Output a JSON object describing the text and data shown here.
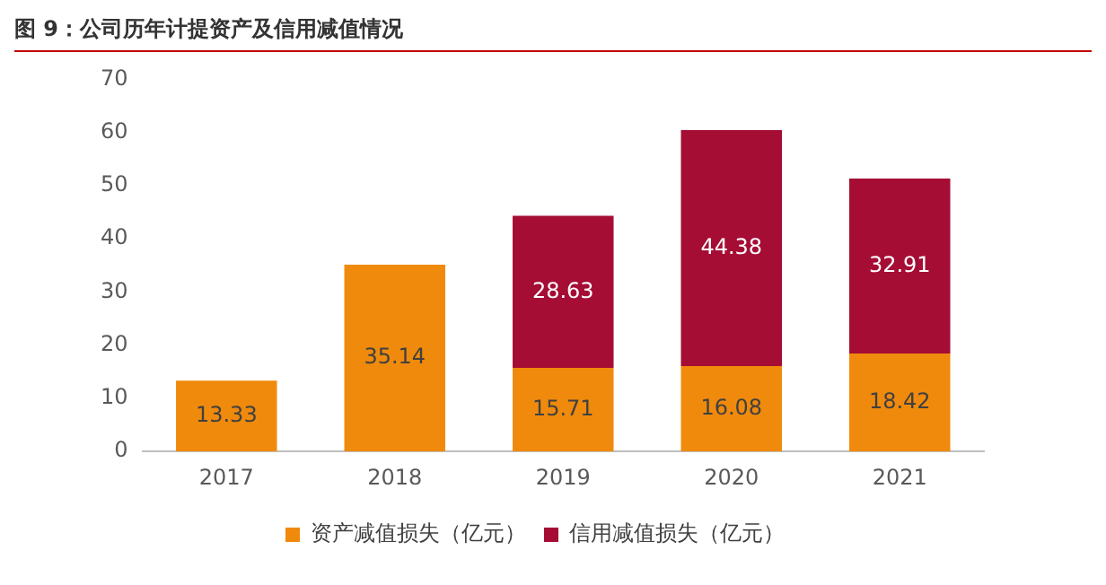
{
  "chart_data": {
    "type": "bar",
    "title": "图 9：公司历年计提资产及信用减值情况",
    "categories": [
      "2017",
      "2018",
      "2019",
      "2020",
      "2021"
    ],
    "stacked": true,
    "series": [
      {
        "name": "资产减值损失（亿元）",
        "color": "#f08a0c",
        "values": [
          13.33,
          35.14,
          15.71,
          16.08,
          18.42
        ]
      },
      {
        "name": "信用减值损失（亿元）",
        "color": "#a50d35",
        "values": [
          null,
          null,
          28.63,
          44.38,
          32.91
        ]
      }
    ],
    "ylim": [
      0,
      70
    ],
    "yticks": [
      0,
      10,
      20,
      30,
      40,
      50,
      60,
      70
    ],
    "grid": false,
    "legend": "bottom",
    "data_labels": true
  }
}
